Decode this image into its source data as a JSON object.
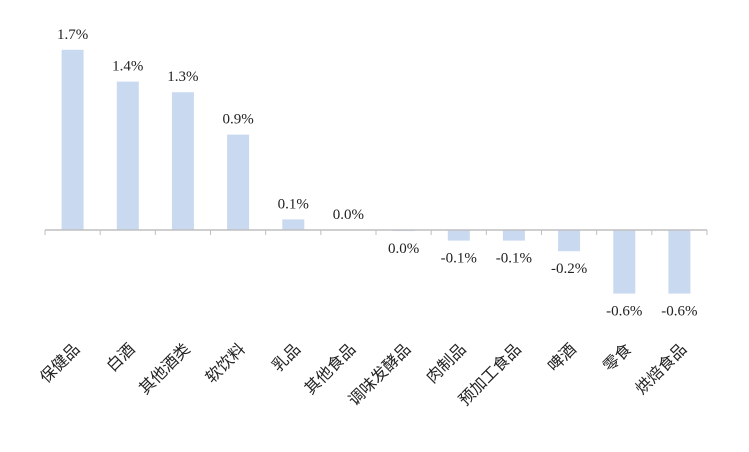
{
  "chart_data": {
    "type": "bar",
    "categories": [
      "保健品",
      "白酒",
      "其他酒类",
      "软饮料",
      "乳品",
      "其他食品",
      "调味发酵品",
      "肉制品",
      "预加工食品",
      "啤酒",
      "零食",
      "烘焙食品"
    ],
    "values": [
      1.7,
      1.4,
      1.3,
      0.9,
      0.1,
      0.0,
      -0.01,
      -0.1,
      -0.1,
      -0.2,
      -0.6,
      -0.6
    ],
    "data_labels": [
      "1.7%",
      "1.4%",
      "1.3%",
      "0.9%",
      "0.1%",
      "0.0%",
      "0.0%",
      "-0.1%",
      "-0.1%",
      "-0.2%",
      "-0.6%",
      "-0.6%"
    ],
    "title": "",
    "xlabel": "",
    "ylabel": "",
    "ylim": [
      -0.8,
      1.8
    ],
    "grid": false,
    "legend": "none",
    "bar_color": "#c9d9f0",
    "axis_color": "#bfbfbf"
  }
}
